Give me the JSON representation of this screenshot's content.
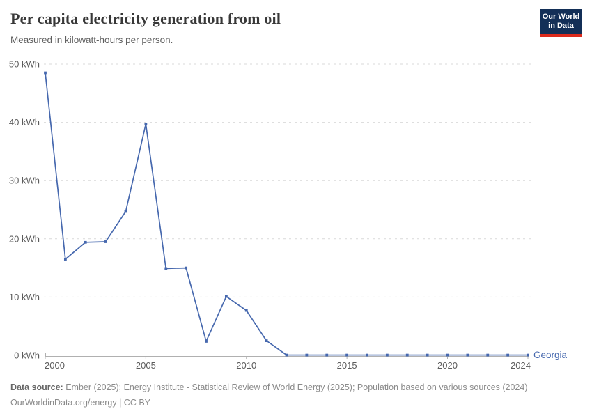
{
  "header": {
    "title": "Per capita electricity generation from oil",
    "subtitle": "Measured in kilowatt-hours per person.",
    "logo": {
      "line1": "Our World",
      "line2": "in Data",
      "bg_color": "#132f57",
      "accent_color": "#dc2a1c"
    }
  },
  "chart_data": {
    "type": "line",
    "title": "Per capita electricity generation from oil",
    "subtitle": "Measured in kilowatt-hours per person.",
    "unit": "kWh",
    "x": [
      2000,
      2001,
      2002,
      2003,
      2004,
      2005,
      2006,
      2007,
      2008,
      2009,
      2010,
      2011,
      2012,
      2013,
      2014,
      2015,
      2016,
      2017,
      2018,
      2019,
      2020,
      2021,
      2022,
      2023,
      2024
    ],
    "series": [
      {
        "name": "Georgia",
        "color": "#4668ae",
        "values": [
          48.5,
          16.5,
          19.4,
          19.5,
          24.7,
          39.7,
          14.9,
          15.0,
          2.4,
          10.1,
          7.7,
          2.5,
          0.05,
          0.05,
          0.05,
          0.05,
          0.05,
          0.05,
          0.05,
          0.05,
          0.05,
          0.05,
          0.05,
          0.05,
          0.05
        ]
      }
    ],
    "xlim": [
      2000,
      2024
    ],
    "ylim": [
      0,
      50
    ],
    "x_ticks": {
      "values": [
        2000,
        2005,
        2010,
        2015,
        2020,
        2024
      ],
      "labels": [
        "2000",
        "2005",
        "2010",
        "2015",
        "2020",
        "2024"
      ]
    },
    "y_ticks": {
      "values": [
        0,
        10,
        20,
        30,
        40,
        50
      ],
      "labels": [
        "0 kWh",
        "10 kWh",
        "20 kWh",
        "30 kWh",
        "40 kWh",
        "50 kWh"
      ]
    },
    "grid": "horizontal-dashed",
    "legend_position": "line-end"
  },
  "footer": {
    "source_label": "Data source:",
    "source_text": " Ember (2025); Energy Institute - Statistical Review of World Energy (2025); Population based on various sources (2024)",
    "link_line": "OurWorldinData.org/energy | CC BY"
  }
}
